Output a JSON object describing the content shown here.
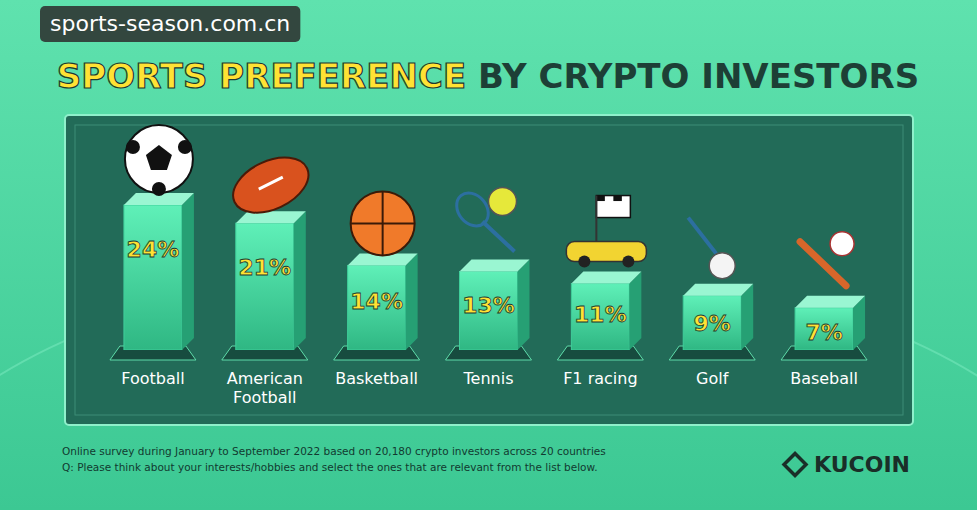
{
  "chart_data": {
    "type": "bar",
    "title": "SPORTS PREFERENCE BY CRYPTO INVESTORS",
    "categories": [
      "Football",
      "American Football",
      "Basketball",
      "Tennis",
      "F1 racing",
      "Golf",
      "Baseball"
    ],
    "values": [
      24,
      21,
      14,
      13,
      11,
      9,
      7
    ],
    "value_labels": [
      "24%",
      "21%",
      "14%",
      "13%",
      "11%",
      "9%",
      "7%"
    ],
    "ylim": [
      0,
      24
    ],
    "grid": false,
    "tick_labels": false,
    "data_labels": true,
    "color": "#3fcf9a",
    "notes": [
      "Online survey during January to September 2022 based on 20,180 crypto investors across 20 countries",
      "Q: Please think about your interests/hobbies and select the ones that are relevant from the list below."
    ],
    "brand": "KUCOIN",
    "watermark": "sports-season.com.cn"
  }
}
